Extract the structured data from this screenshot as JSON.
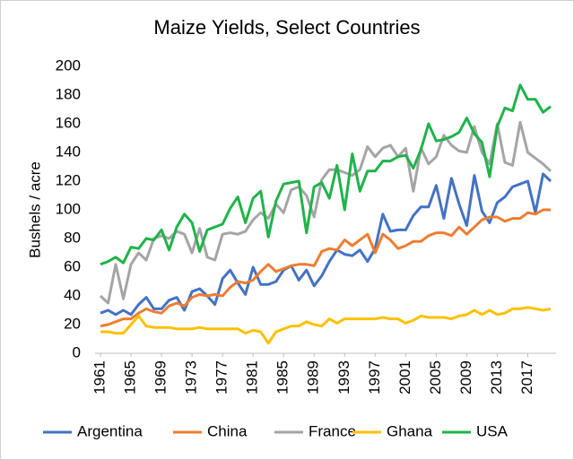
{
  "chart_data": {
    "type": "line",
    "title": "Maize Yields, Select Countries",
    "y_label": "Bushels / acre",
    "x": [
      1961,
      1962,
      1963,
      1964,
      1965,
      1966,
      1967,
      1968,
      1969,
      1970,
      1971,
      1972,
      1973,
      1974,
      1975,
      1976,
      1977,
      1978,
      1979,
      1980,
      1981,
      1982,
      1983,
      1984,
      1985,
      1986,
      1987,
      1988,
      1989,
      1990,
      1991,
      1992,
      1993,
      1994,
      1995,
      1996,
      1997,
      1998,
      1999,
      2000,
      2001,
      2002,
      2003,
      2004,
      2005,
      2006,
      2007,
      2008,
      2009,
      2010,
      2011,
      2012,
      2013,
      2014,
      2015,
      2016,
      2017,
      2018,
      2019,
      2020
    ],
    "xlim": [
      1961,
      2020
    ],
    "xticks": [
      1961,
      1965,
      1969,
      1973,
      1977,
      1981,
      1985,
      1989,
      1993,
      1997,
      2001,
      2005,
      2009,
      2013,
      2017
    ],
    "ylim": [
      0,
      200
    ],
    "yticks": [
      0,
      20,
      40,
      60,
      80,
      100,
      120,
      140,
      160,
      180,
      200
    ],
    "grid": false,
    "legend": "bottom",
    "series": [
      {
        "name": "Argentina",
        "color": "#4472c4",
        "values": [
          28,
          30,
          27,
          30,
          27,
          34,
          39,
          31,
          31,
          37,
          39,
          30,
          43,
          45,
          40,
          34,
          52,
          58,
          49,
          41,
          60,
          48,
          48,
          50,
          58,
          61,
          51,
          58,
          47,
          54,
          64,
          72,
          69,
          68,
          72,
          64,
          73,
          97,
          85,
          86,
          86,
          96,
          102,
          102,
          117,
          94,
          122,
          104,
          89,
          124,
          99,
          91,
          105,
          109,
          116,
          118,
          120,
          98,
          125,
          120
        ]
      },
      {
        "name": "China",
        "color": "#ed7d31",
        "values": [
          19,
          20,
          22,
          24,
          24,
          28,
          31,
          29,
          28,
          33,
          35,
          33,
          39,
          41,
          40,
          41,
          40,
          46,
          50,
          49,
          51,
          57,
          62,
          57,
          59,
          61,
          62,
          62,
          61,
          71,
          73,
          72,
          79,
          75,
          79,
          83,
          70,
          83,
          79,
          73,
          75,
          78,
          78,
          82,
          84,
          84,
          82,
          88,
          83,
          88,
          93,
          95,
          95,
          92,
          94,
          94,
          98,
          97,
          100,
          100
        ]
      },
      {
        "name": "France",
        "color": "#a5a5a5",
        "values": [
          40,
          35,
          62,
          38,
          62,
          70,
          65,
          80,
          82,
          80,
          85,
          83,
          70,
          87,
          67,
          65,
          83,
          84,
          83,
          85,
          93,
          98,
          94,
          104,
          98,
          114,
          116,
          110,
          95,
          121,
          128,
          128,
          126,
          124,
          128,
          144,
          137,
          143,
          145,
          137,
          143,
          113,
          143,
          132,
          137,
          152,
          145,
          141,
          140,
          158,
          140,
          132,
          160,
          133,
          131,
          161,
          140,
          136,
          132,
          127
        ]
      },
      {
        "name": "Ghana",
        "color": "#ffc000",
        "values": [
          15,
          15,
          14,
          14,
          20,
          26,
          19,
          18,
          18,
          18,
          17,
          17,
          17,
          18,
          17,
          17,
          17,
          17,
          17,
          14,
          16,
          15,
          7,
          15,
          17,
          19,
          19,
          22,
          20,
          19,
          24,
          21,
          24,
          24,
          24,
          24,
          24,
          25,
          24,
          24,
          21,
          23,
          26,
          25,
          25,
          25,
          24,
          26,
          27,
          30,
          27,
          30,
          27,
          28,
          31,
          31,
          32,
          31,
          30,
          31
        ]
      },
      {
        "name": "USA",
        "color": "#1fb34a",
        "values": [
          62,
          64,
          67,
          63,
          74,
          73,
          80,
          79,
          86,
          72,
          88,
          97,
          91,
          71,
          86,
          88,
          90,
          101,
          109,
          91,
          108,
          113,
          81,
          106,
          118,
          119,
          120,
          84,
          116,
          119,
          108,
          131,
          100,
          139,
          113,
          127,
          127,
          134,
          134,
          137,
          138,
          129,
          142,
          160,
          148,
          149,
          151,
          154,
          164,
          153,
          147,
          123,
          158,
          171,
          169,
          187,
          177,
          177,
          168,
          172
        ]
      }
    ]
  }
}
